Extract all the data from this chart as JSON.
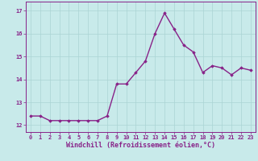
{
  "x": [
    0,
    1,
    2,
    3,
    4,
    5,
    6,
    7,
    8,
    9,
    10,
    11,
    12,
    13,
    14,
    15,
    16,
    17,
    18,
    19,
    20,
    21,
    22,
    23
  ],
  "y": [
    12.4,
    12.4,
    12.2,
    12.2,
    12.2,
    12.2,
    12.2,
    12.2,
    12.4,
    13.8,
    13.8,
    14.3,
    14.8,
    16.0,
    16.9,
    16.2,
    15.5,
    15.2,
    14.3,
    14.6,
    14.5,
    14.2,
    14.5,
    14.4
  ],
  "line_color": "#882288",
  "marker": "D",
  "marker_size": 1.8,
  "bg_color": "#c8eaea",
  "grid_color": "#aad4d4",
  "xlabel": "Windchill (Refroidissement éolien,°C)",
  "xlabel_color": "#882288",
  "xlim": [
    -0.5,
    23.5
  ],
  "ylim": [
    11.7,
    17.4
  ],
  "yticks": [
    12,
    13,
    14,
    15,
    16,
    17
  ],
  "xticks": [
    0,
    1,
    2,
    3,
    4,
    5,
    6,
    7,
    8,
    9,
    10,
    11,
    12,
    13,
    14,
    15,
    16,
    17,
    18,
    19,
    20,
    21,
    22,
    23
  ],
  "tick_color": "#882288",
  "tick_fontsize": 5.0,
  "xlabel_fontsize": 6.0,
  "linewidth": 1.0
}
